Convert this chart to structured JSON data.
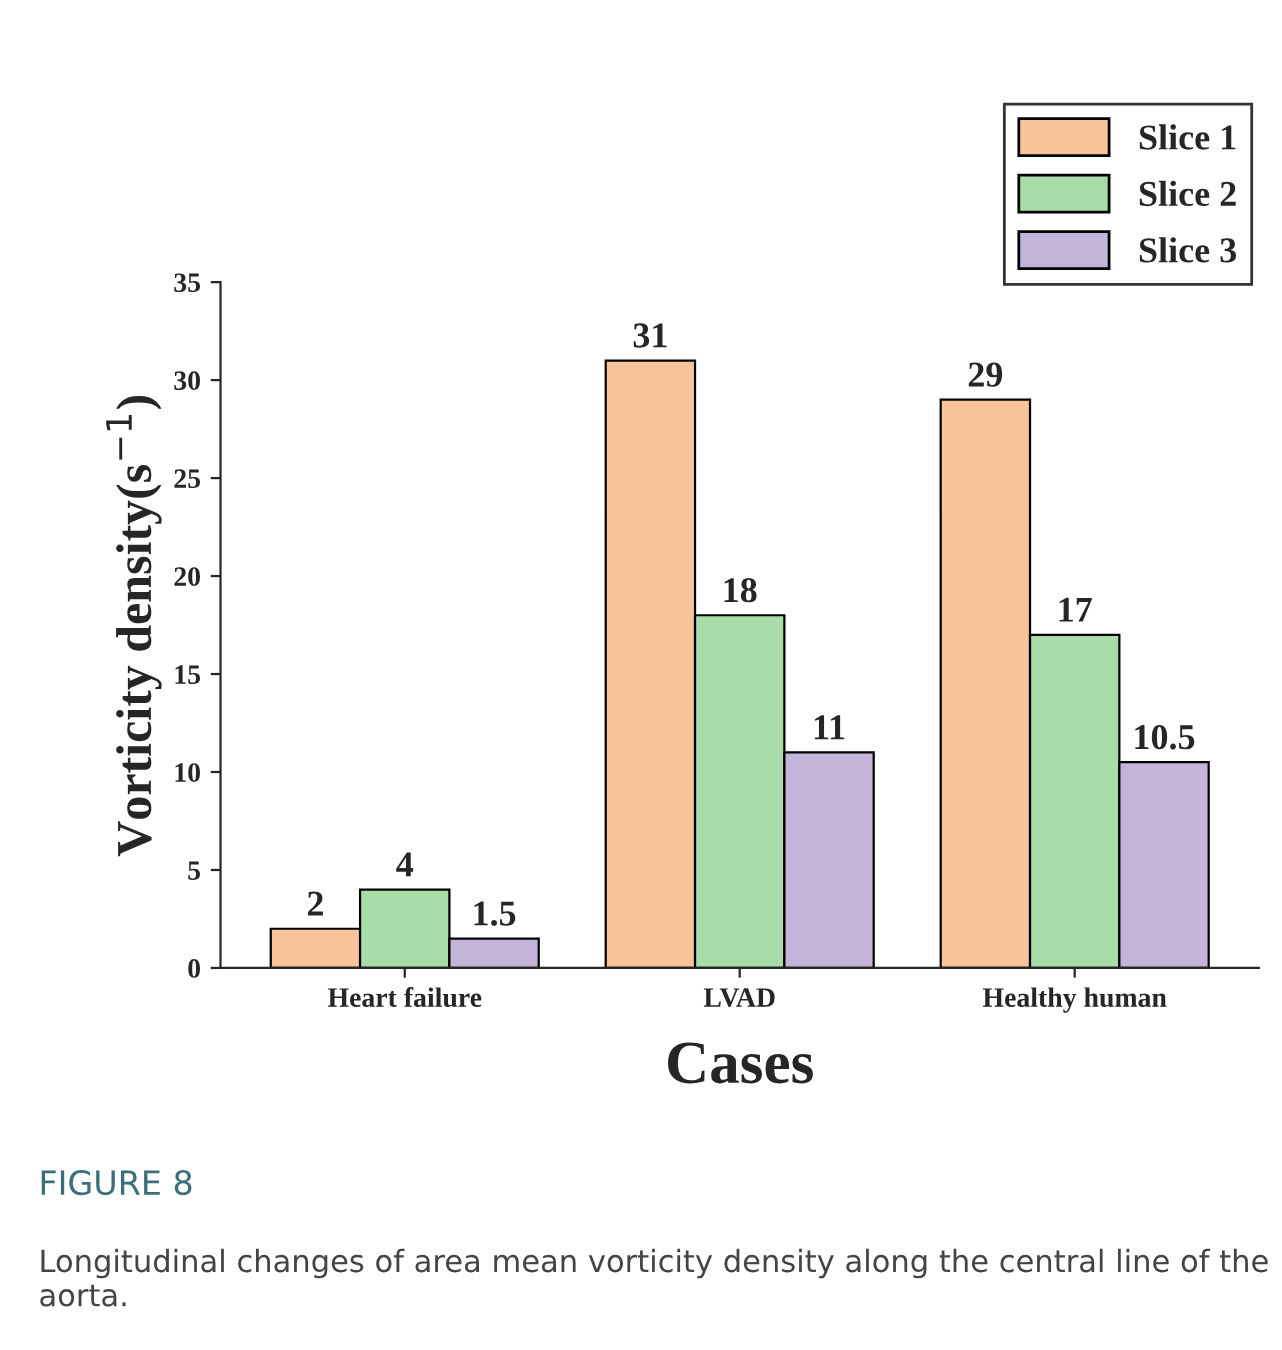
{
  "chart_data": {
    "type": "bar",
    "xlabel": "Cases",
    "ylabel": "Vorticity density(s$^{−1}$)",
    "categories": [
      "Heart failure",
      "LVAD",
      "Healthy human"
    ],
    "series": [
      {
        "name": "Slice 1",
        "color": "#f9c49a",
        "values": [
          2,
          31,
          29
        ]
      },
      {
        "name": "Slice 2",
        "color": "#a8dca8",
        "values": [
          4,
          18,
          17
        ]
      },
      {
        "name": "Slice 3",
        "color": "#c3b4da",
        "values": [
          1.5,
          11,
          10.5
        ]
      }
    ],
    "ylim": [
      0,
      35
    ],
    "yticks": [
      0,
      5,
      10,
      15,
      20,
      25,
      30,
      35
    ],
    "data_labels": true,
    "legend": "top right",
    "grid": false,
    "annotations": [
      "FIGURE 8",
      "Longitudinal changes of area mean vorticity density along the central line of the aorta."
    ]
  }
}
